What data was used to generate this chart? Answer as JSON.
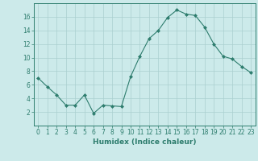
{
  "x": [
    0,
    1,
    2,
    3,
    4,
    5,
    6,
    7,
    8,
    9,
    10,
    11,
    12,
    13,
    14,
    15,
    16,
    17,
    18,
    19,
    20,
    21,
    22,
    23
  ],
  "y": [
    7,
    5.7,
    4.5,
    3.0,
    3.0,
    4.5,
    1.8,
    3.0,
    2.9,
    2.8,
    7.2,
    10.2,
    12.8,
    14.0,
    15.9,
    17.0,
    16.4,
    16.2,
    14.5,
    12.0,
    10.2,
    9.8,
    8.7,
    7.8
  ],
  "line_color": "#2e7d6e",
  "marker": "D",
  "marker_size": 2,
  "bg_color": "#cceaea",
  "grid_color": "#aacfcf",
  "xlabel": "Humidex (Indice chaleur)",
  "ylim": [
    0,
    18
  ],
  "xlim": [
    -0.5,
    23.5
  ],
  "yticks": [
    2,
    4,
    6,
    8,
    10,
    12,
    14,
    16
  ],
  "xticks": [
    0,
    1,
    2,
    3,
    4,
    5,
    6,
    7,
    8,
    9,
    10,
    11,
    12,
    13,
    14,
    15,
    16,
    17,
    18,
    19,
    20,
    21,
    22,
    23
  ],
  "label_fontsize": 6.5,
  "tick_fontsize": 5.5
}
